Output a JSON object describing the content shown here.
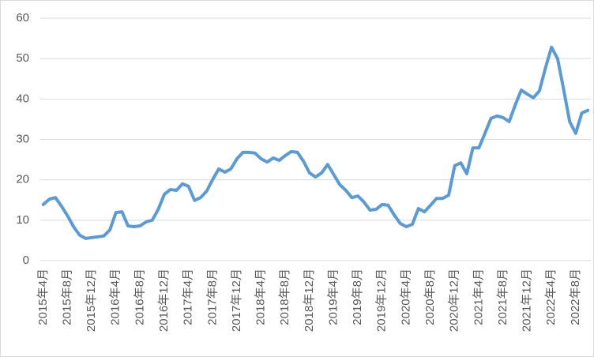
{
  "chart_data": {
    "type": "line",
    "categories": [
      "2015年4月",
      null,
      null,
      null,
      "2015年8月",
      null,
      null,
      null,
      "2015年12月",
      null,
      null,
      null,
      "2016年4月",
      null,
      null,
      null,
      "2016年8月",
      null,
      null,
      null,
      "2016年12月",
      null,
      null,
      null,
      "2017年4月",
      null,
      null,
      null,
      "2017年8月",
      null,
      null,
      null,
      "2017年12月",
      null,
      null,
      null,
      "2018年4月",
      null,
      null,
      null,
      "2018年8月",
      null,
      null,
      null,
      "2018年12月",
      null,
      null,
      null,
      "2019年4月",
      null,
      null,
      null,
      "2019年8月",
      null,
      null,
      null,
      "2019年12月",
      null,
      null,
      null,
      "2020年4月",
      null,
      null,
      null,
      "2020年8月",
      null,
      null,
      null,
      "2020年12月",
      null,
      null,
      null,
      "2021年4月",
      null,
      null,
      null,
      "2021年8月",
      null,
      null,
      null,
      "2021年12月",
      null,
      null,
      null,
      "2022年4月",
      null,
      null,
      null,
      "2022年8月",
      null,
      null
    ],
    "values": [
      13.9,
      15.2,
      15.6,
      13.5,
      11.1,
      8.4,
      6.3,
      5.5,
      5.7,
      5.9,
      6.1,
      7.6,
      11.9,
      12.1,
      8.6,
      8.4,
      8.6,
      9.6,
      10.0,
      12.7,
      16.4,
      17.6,
      17.4,
      19.0,
      18.4,
      14.9,
      15.6,
      17.2,
      20.1,
      22.7,
      21.9,
      22.7,
      25.2,
      26.8,
      26.8,
      26.6,
      25.2,
      24.4,
      25.4,
      24.8,
      26.0,
      27.0,
      26.8,
      24.6,
      21.7,
      20.7,
      21.7,
      23.8,
      21.3,
      18.8,
      17.4,
      15.6,
      16.0,
      14.5,
      12.5,
      12.7,
      13.9,
      13.7,
      11.3,
      9.2,
      8.4,
      9.0,
      12.9,
      12.1,
      13.7,
      15.4,
      15.4,
      16.2,
      23.5,
      24.2,
      21.5,
      27.9,
      27.9,
      31.5,
      35.2,
      35.8,
      35.4,
      34.4,
      38.5,
      42.2,
      41.2,
      40.3,
      42.0,
      47.7,
      52.8,
      50.0,
      42.4,
      34.4,
      31.5,
      36.5,
      37.2
    ],
    "color": "#5b9bd5",
    "ylim": [
      0,
      60
    ],
    "yticks": [
      0,
      10,
      20,
      30,
      40,
      50,
      60
    ],
    "grid": true
  }
}
